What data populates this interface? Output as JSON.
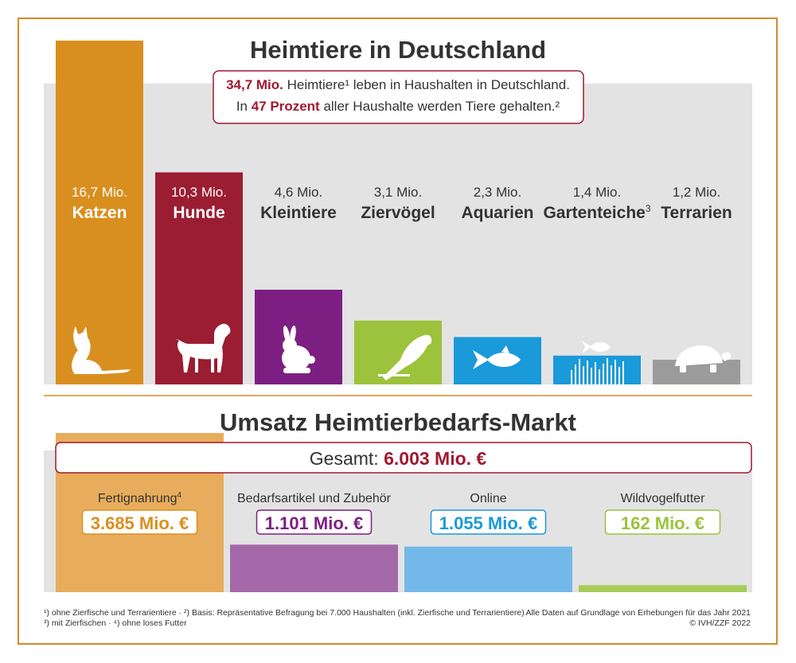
{
  "colors": {
    "frame": "#d58a2c",
    "panel": "#e3e3e3",
    "text": "#333333",
    "accent_red": "#a0192f"
  },
  "chart_data": [
    {
      "type": "bar",
      "title": "Heimtiere in Deutschland",
      "subtitle": {
        "line1": [
          "34,7 Mio.",
          "Heimtiere¹ leben in Haushalten in Deutschland."
        ],
        "line2": [
          "In",
          "47 Prozent",
          "aller Haushalte werden Tiere gehalten.²"
        ]
      },
      "categories": [
        "Katzen",
        "Hunde",
        "Kleintiere",
        "Ziervögel",
        "Aquarien",
        "Gartenteiche",
        "Terrarien"
      ],
      "category_superscripts": [
        "",
        "",
        "",
        "",
        "",
        "3",
        ""
      ],
      "values": [
        16.7,
        10.3,
        4.6,
        3.1,
        2.3,
        1.4,
        1.2
      ],
      "value_labels": [
        "16,7 Mio.",
        "10,3 Mio.",
        "4,6 Mio.",
        "3,1 Mio.",
        "2,3 Mio.",
        "1,4 Mio.",
        "1,2 Mio."
      ],
      "colors": [
        "#d98f1f",
        "#9b1d32",
        "#7d1f82",
        "#9cc33b",
        "#1a9ad9",
        "#1a9ad9",
        "#9b9b9b"
      ],
      "icons": [
        "cat-icon",
        "dog-icon",
        "rabbit-icon",
        "parrot-icon",
        "fish-icon",
        "pond-fish-icon",
        "turtle-icon"
      ],
      "ylim": [
        0,
        16.7
      ],
      "grid": false
    },
    {
      "type": "bar",
      "title": "Umsatz Heimtierbedarfs-Markt",
      "total_label": "Gesamt:",
      "total_value": "6.003 Mio. €",
      "categories": [
        "Fertignahrung",
        "Bedarfsartikel und Zubehör",
        "Online",
        "Wildvogelfutter"
      ],
      "category_superscripts": [
        "4",
        "",
        "",
        ""
      ],
      "values": [
        3685,
        1101,
        1055,
        162
      ],
      "value_labels": [
        "3.685 Mio. €",
        "1.101 Mio. €",
        "1.055 Mio. €",
        "162 Mio. €"
      ],
      "colors": [
        "#e8ad5c",
        "#a569a9",
        "#72b8e8",
        "#a8cc5a"
      ],
      "text_colors": [
        "#d98f1f",
        "#7d1f82",
        "#1a9ad9",
        "#9cc33b"
      ],
      "ylim": [
        0,
        3685
      ],
      "grid": false
    }
  ],
  "footnotes": {
    "left_line1": "¹) ohne Zierfische und Terrarientiere · ²) Basis: Repräsentative Befragung bei 7.000 Haushalten (inkl. Zierfische und Terrarientiere)",
    "left_line2": "³) mit Zierfischen · ⁴) ohne loses Futter",
    "right_line1": "Alle Daten auf Grundlage von Erhebungen für das Jahr 2021",
    "right_line2": "© IVH/ZZF 2022"
  }
}
